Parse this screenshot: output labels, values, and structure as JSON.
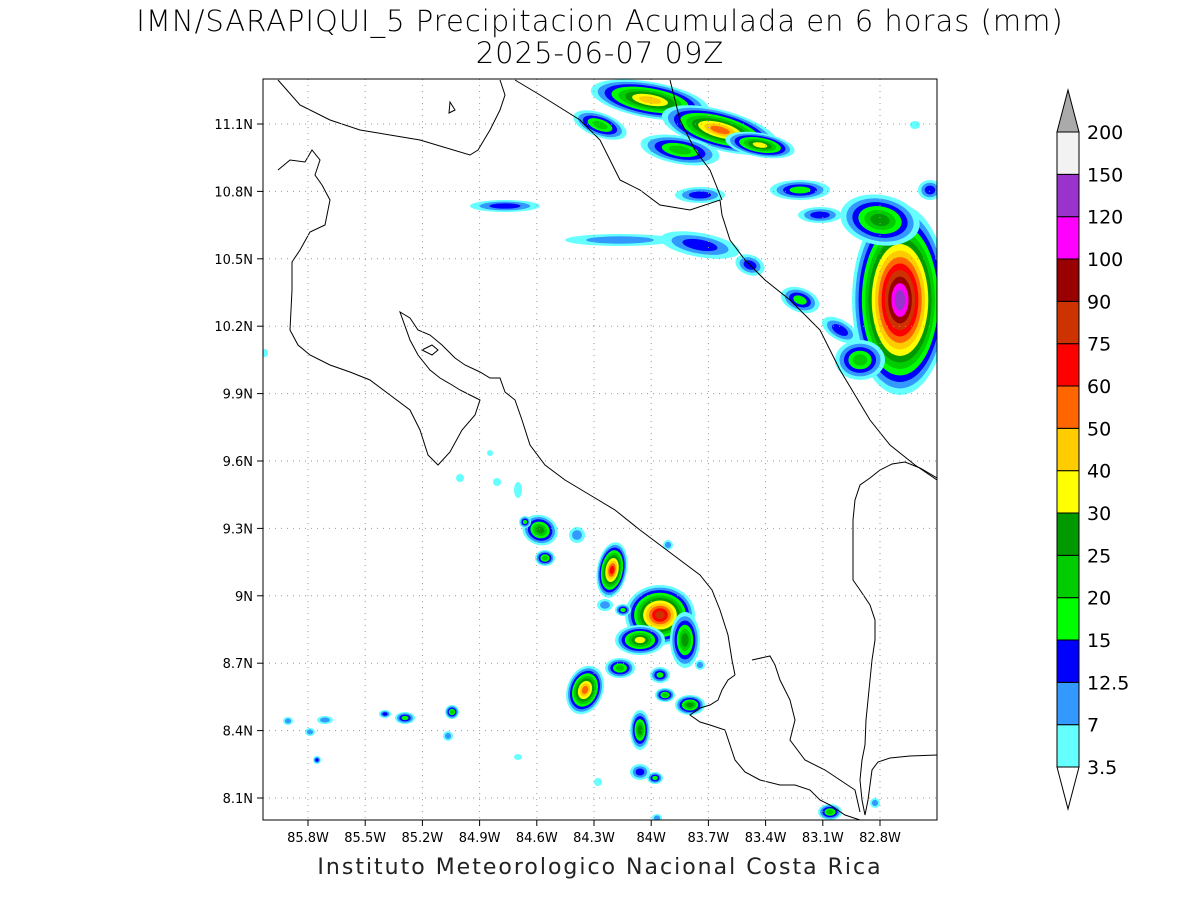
{
  "title_line1": "IMN/SARAPIQUI_5 Precipitacion Acumulada en 6 horas (mm)",
  "title_line2": "2025-06-07 09Z",
  "footer": "Instituto Meteorologico Nacional Costa Rica",
  "axes": {
    "lon_ticks": [
      "85.8W",
      "85.5W",
      "85.2W",
      "84.9W",
      "84.6W",
      "84.3W",
      "84W",
      "83.7W",
      "83.4W",
      "83.1W",
      "82.8W"
    ],
    "lat_ticks": [
      "11.1N",
      "10.8N",
      "10.5N",
      "10.2N",
      "9.9N",
      "9.6N",
      "9.3N",
      "9N",
      "8.7N",
      "8.4N",
      "8.1N"
    ],
    "lon_range": [
      -86.05,
      -83.05
    ],
    "lat_range": [
      8.0,
      11.3
    ],
    "grid": "dotted"
  },
  "legend": {
    "levels": [
      "3.5",
      "7",
      "12.5",
      "15",
      "20",
      "25",
      "30",
      "40",
      "50",
      "60",
      "75",
      "90",
      "100",
      "120",
      "150",
      "200"
    ],
    "colors": [
      "#ffffff",
      "#66ffff",
      "#3399ff",
      "#0000ff",
      "#00ff00",
      "#00cc00",
      "#009900",
      "#ffff00",
      "#ffcc00",
      "#ff6600",
      "#ff0000",
      "#cc3300",
      "#990000",
      "#ff00ff",
      "#9933cc",
      "#f2f2f2",
      "#aaaaaa"
    ]
  },
  "palette": {
    "c1": "#66ffff",
    "c2": "#3399ff",
    "c3": "#0000ff",
    "c4": "#00ff00",
    "c5": "#00cc00",
    "c6": "#009900",
    "c7": "#ffff00",
    "c8": "#ffcc00",
    "c9": "#ff6600",
    "c10": "#ff0000",
    "c11": "#cc3300",
    "c12": "#990000",
    "c13": "#ff00ff",
    "c14": "#9933cc"
  }
}
